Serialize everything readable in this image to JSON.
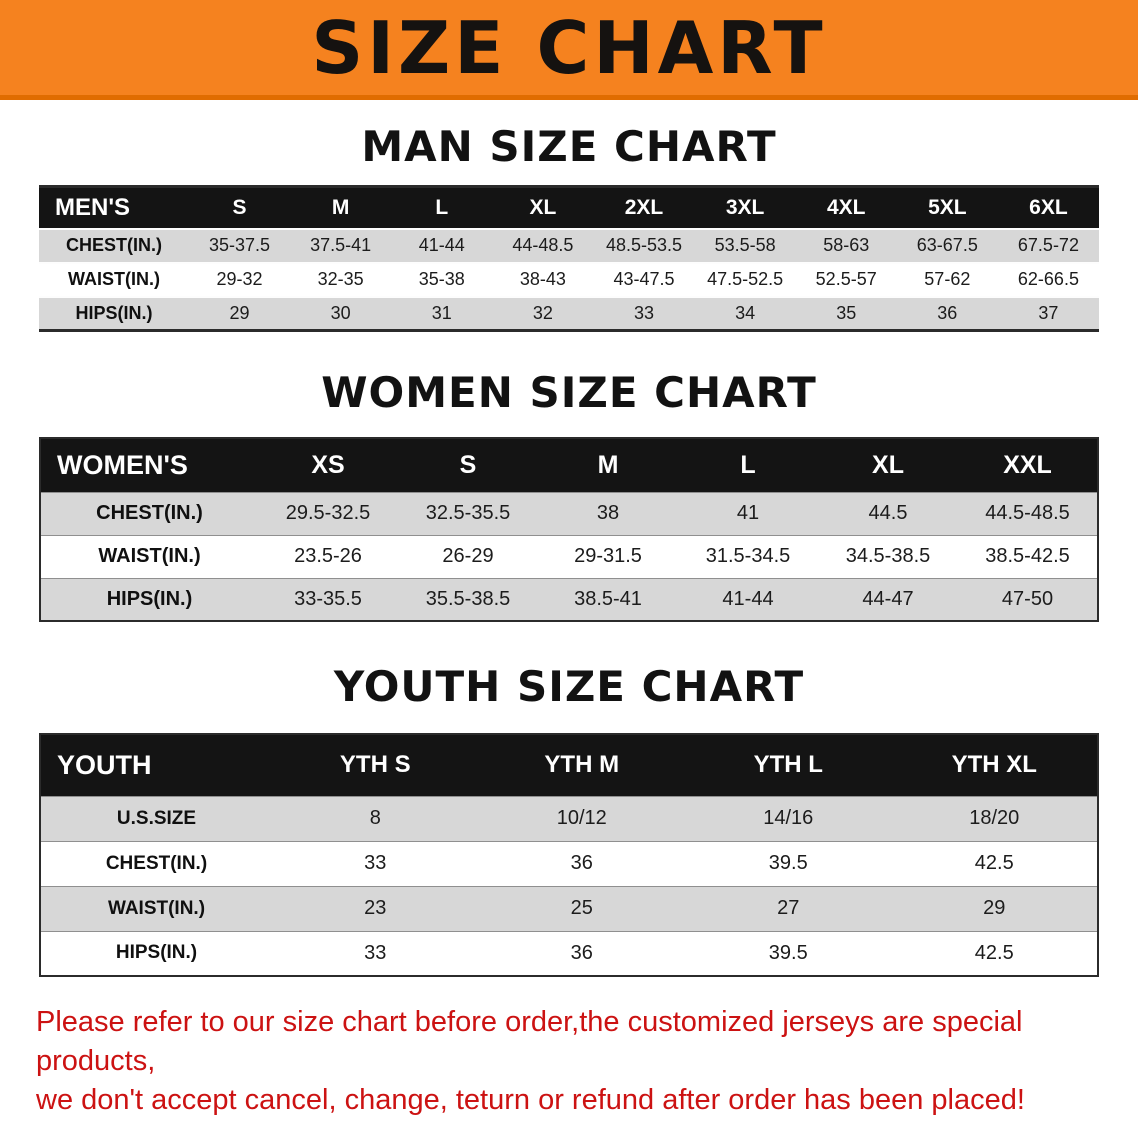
{
  "banner": {
    "title": "SIZE CHART",
    "bg_color": "#f5821f",
    "border_color": "#e06c00",
    "text_color": "#151210"
  },
  "sections": [
    {
      "id": "men",
      "heading": "MAN SIZE CHART",
      "table": {
        "label": "MEN'S",
        "columns": [
          "S",
          "M",
          "L",
          "XL",
          "2XL",
          "3XL",
          "4XL",
          "5XL",
          "6XL"
        ],
        "rows": [
          {
            "label": "CHEST(IN.)",
            "values": [
              "35-37.5",
              "37.5-41",
              "41-44",
              "44-48.5",
              "48.5-53.5",
              "53.5-58",
              "58-63",
              "63-67.5",
              "67.5-72"
            ]
          },
          {
            "label": "WAIST(IN.)",
            "values": [
              "29-32",
              "32-35",
              "35-38",
              "38-43",
              "43-47.5",
              "47.5-52.5",
              "52.5-57",
              "57-62",
              "62-66.5"
            ]
          },
          {
            "label": "HIPS(IN.)",
            "values": [
              "29",
              "30",
              "31",
              "32",
              "33",
              "34",
              "35",
              "36",
              "37"
            ]
          }
        ]
      }
    },
    {
      "id": "women",
      "heading": "WOMEN SIZE CHART",
      "table": {
        "label": "WOMEN'S",
        "columns": [
          "XS",
          "S",
          "M",
          "L",
          "XL",
          "XXL"
        ],
        "rows": [
          {
            "label": "CHEST(IN.)",
            "values": [
              "29.5-32.5",
              "32.5-35.5",
              "38",
              "41",
              "44.5",
              "44.5-48.5"
            ]
          },
          {
            "label": "WAIST(IN.)",
            "values": [
              "23.5-26",
              "26-29",
              "29-31.5",
              "31.5-34.5",
              "34.5-38.5",
              "38.5-42.5"
            ]
          },
          {
            "label": "HIPS(IN.)",
            "values": [
              "33-35.5",
              "35.5-38.5",
              "38.5-41",
              "41-44",
              "44-47",
              "47-50"
            ]
          }
        ]
      }
    },
    {
      "id": "youth",
      "heading": "YOUTH SIZE CHART",
      "table": {
        "label": "YOUTH",
        "columns": [
          "YTH S",
          "YTH M",
          "YTH L",
          "YTH XL"
        ],
        "rows": [
          {
            "label": "U.S.SIZE",
            "values": [
              "8",
              "10/12",
              "14/16",
              "18/20"
            ]
          },
          {
            "label": "CHEST(IN.)",
            "values": [
              "33",
              "36",
              "39.5",
              "42.5"
            ]
          },
          {
            "label": "WAIST(IN.)",
            "values": [
              "23",
              "25",
              "27",
              "29"
            ]
          },
          {
            "label": "HIPS(IN.)",
            "values": [
              "33",
              "36",
              "39.5",
              "42.5"
            ]
          }
        ]
      }
    }
  ],
  "footer": {
    "lines": [
      "Please refer to our size chart before order,the customized jerseys are special products,",
      "we don't accept cancel, change, teturn or refund after order has been placed!"
    ],
    "text_color": "#cc1212"
  },
  "colors": {
    "header_bg": "#141414",
    "header_text": "#ffffff",
    "row_alt_bg": "#d7d7d7",
    "row_bg": "#ffffff"
  }
}
